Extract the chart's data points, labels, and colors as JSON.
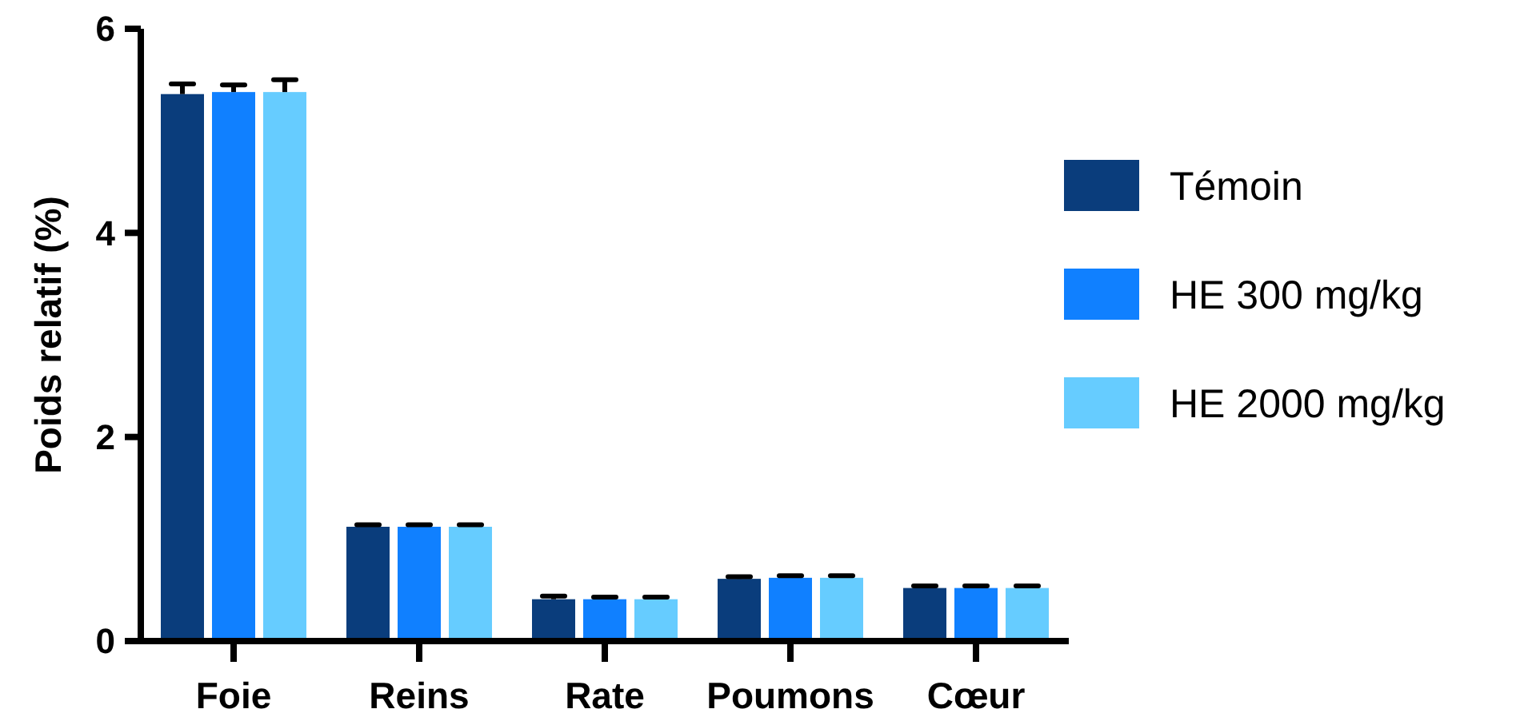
{
  "chart_data": {
    "type": "bar",
    "ylabel": "Poids relatif  (%)",
    "categories": [
      "Foie",
      "Reins",
      "Rate",
      "Poumons",
      "Cœur"
    ],
    "series": [
      {
        "name": "Témoin",
        "color": "#0a3d7c",
        "values": [
          5.36,
          1.12,
          0.41,
          0.61,
          0.52
        ],
        "errors": [
          0.1,
          0.02,
          0.03,
          0.02,
          0.02
        ]
      },
      {
        "name": "HE 300 mg/kg",
        "color": "#1080ff",
        "values": [
          5.38,
          1.12,
          0.41,
          0.62,
          0.52
        ],
        "errors": [
          0.07,
          0.02,
          0.02,
          0.02,
          0.02
        ]
      },
      {
        "name": "HE 2000 mg/kg",
        "color": "#66ccff",
        "values": [
          5.38,
          1.12,
          0.41,
          0.62,
          0.52
        ],
        "errors": [
          0.12,
          0.02,
          0.02,
          0.02,
          0.02
        ]
      }
    ],
    "ylim": [
      0,
      6
    ],
    "yticks": [
      0,
      2,
      4,
      6
    ],
    "grid": false,
    "legend": "right"
  }
}
